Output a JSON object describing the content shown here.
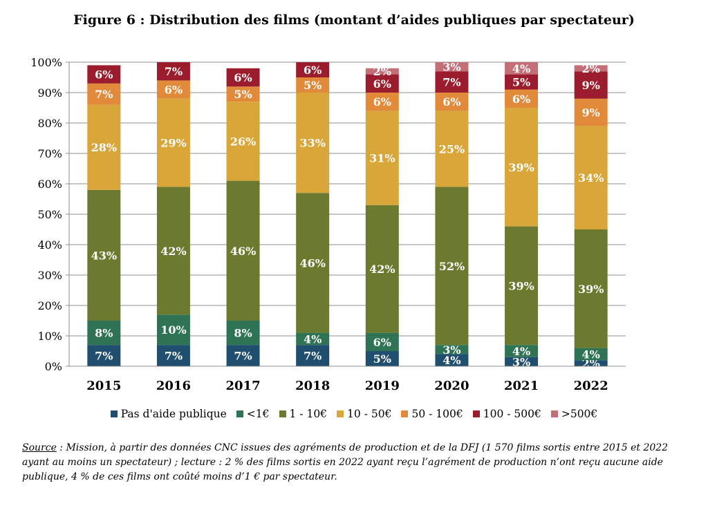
{
  "title": "Figure 6 : Distribution des films (montant d’aides publiques par spectateur)",
  "chart_data": {
    "type": "bar",
    "stacked": true,
    "categories": [
      "2015",
      "2016",
      "2017",
      "2018",
      "2019",
      "2020",
      "2021",
      "2022"
    ],
    "ylim": [
      0,
      100
    ],
    "yticks": [
      "0%",
      "10%",
      "20%",
      "30%",
      "40%",
      "50%",
      "60%",
      "70%",
      "80%",
      "90%",
      "100%"
    ],
    "grid": true,
    "legend_position": "bottom",
    "series": [
      {
        "name": "Pas d'aide publique",
        "color": "#1f4e6e",
        "values": [
          7,
          7,
          7,
          7,
          5,
          4,
          3,
          2
        ],
        "labels": [
          "7%",
          "7%",
          "7%",
          "7%",
          "5%",
          "4%",
          "3%",
          "2%"
        ]
      },
      {
        "name": "<1€",
        "color": "#2f7355",
        "values": [
          8,
          10,
          8,
          4,
          6,
          3,
          4,
          4
        ],
        "labels": [
          "8%",
          "10%",
          "8%",
          "4%",
          "6%",
          "3%",
          "4%",
          "4%"
        ]
      },
      {
        "name": "1 - 10€",
        "color": "#6b7a2e",
        "values": [
          43,
          42,
          46,
          46,
          42,
          52,
          39,
          39
        ],
        "labels": [
          "43%",
          "42%",
          "46%",
          "46%",
          "42%",
          "52%",
          "39%",
          "39%"
        ]
      },
      {
        "name": "10 - 50€",
        "color": "#d9a63a",
        "values": [
          28,
          29,
          26,
          33,
          31,
          25,
          39,
          34
        ],
        "labels": [
          "28%",
          "29%",
          "26%",
          "33%",
          "31%",
          "25%",
          "39%",
          "34%"
        ]
      },
      {
        "name": "50 - 100€",
        "color": "#e08a3a",
        "values": [
          7,
          6,
          5,
          5,
          6,
          6,
          6,
          9
        ],
        "labels": [
          "7%",
          "6%",
          "5%",
          "5%",
          "6%",
          "6%",
          "6%",
          "9%"
        ]
      },
      {
        "name": "100 - 500€",
        "color": "#9b1c2c",
        "values": [
          6,
          7,
          6,
          6,
          6,
          7,
          5,
          9
        ],
        "labels": [
          "6%",
          "7%",
          "6%",
          "6%",
          "6%",
          "7%",
          "5%",
          "9%"
        ]
      },
      {
        "name": ">500€",
        "color": "#c46f78",
        "values": [
          0,
          0,
          0,
          0,
          2,
          3,
          4,
          2
        ],
        "labels": [
          "",
          "",
          "",
          "",
          "2%",
          "3%",
          "4%",
          "2%"
        ]
      }
    ]
  },
  "source": {
    "label": "Source",
    "text": " : Mission, à partir des données CNC issues des agréments de production et de la DFJ (1 570 films sortis entre 2015 et 2022 ayant au moins un spectateur) ; lecture : 2 % des films sortis en 2022 ayant reçu l’agrément de production n’ont reçu aucune aide publique, 4 % de ces films ont coûté moins d’1 € par spectateur."
  }
}
